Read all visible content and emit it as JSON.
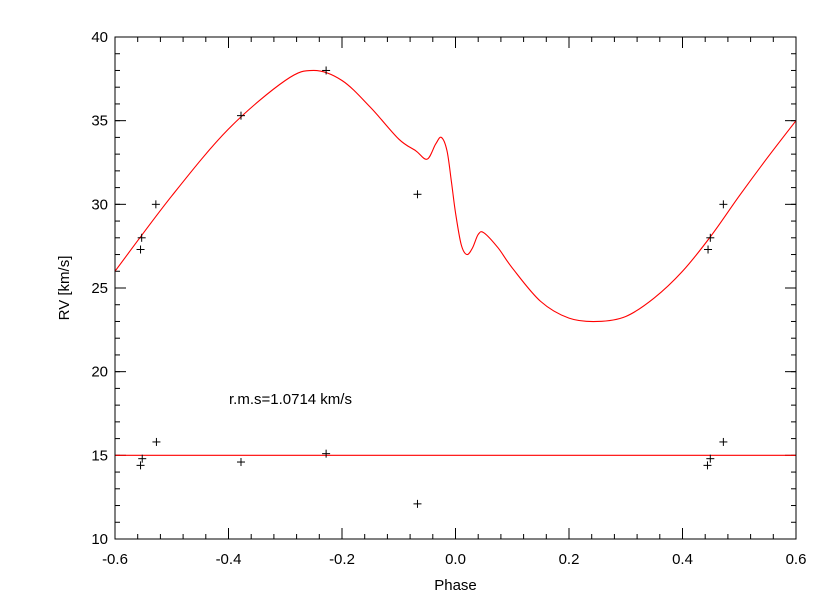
{
  "chart_data": {
    "type": "scatter",
    "xlabel": "Phase",
    "ylabel": "RV [km/s]",
    "xlim": [
      -0.6,
      0.6
    ],
    "ylim": [
      10,
      40
    ],
    "xticks": [
      -0.6,
      -0.4,
      -0.2,
      0.0,
      0.2,
      0.4,
      0.6
    ],
    "xtick_labels": [
      "-0.6",
      "-0.4",
      "-0.2",
      "0.0",
      "0.2",
      "0.4",
      "0.6"
    ],
    "yticks": [
      10,
      15,
      20,
      25,
      30,
      35,
      40
    ],
    "ytick_labels": [
      "10",
      "15",
      "20",
      "25",
      "30",
      "35",
      "40"
    ],
    "x_minor_step": 0.04,
    "y_minor_step": 1,
    "annotation": "r.m.s=1.0714 km/s",
    "colors": {
      "model": "#ff0000",
      "points": "#000000",
      "axes": "#000000"
    },
    "series": [
      {
        "kind": "points",
        "x": [
          -0.555,
          -0.553,
          -0.528,
          -0.378,
          -0.228,
          -0.067,
          0.445,
          0.449,
          0.472
        ],
        "y": [
          27.3,
          28.0,
          30.0,
          35.3,
          38.0,
          30.6,
          27.3,
          28.0,
          30.0
        ]
      },
      {
        "kind": "points",
        "x": [
          -0.555,
          -0.552,
          -0.527,
          -0.378,
          -0.228,
          -0.067,
          0.444,
          0.449,
          0.472
        ],
        "y": [
          14.4,
          14.8,
          15.8,
          14.6,
          15.1,
          12.1,
          14.4,
          14.8,
          15.8
        ]
      },
      {
        "kind": "line",
        "x": [
          -0.6,
          -0.5,
          -0.4,
          -0.3,
          -0.25,
          -0.2,
          -0.15,
          -0.1,
          -0.07,
          -0.05,
          -0.035,
          -0.025,
          -0.015,
          -0.007,
          0.0,
          0.01,
          0.02,
          0.03,
          0.04,
          0.05,
          0.075,
          0.1,
          0.15,
          0.2,
          0.25,
          0.3,
          0.35,
          0.4,
          0.45,
          0.5,
          0.55,
          0.6
        ],
        "y": [
          26.0,
          30.5,
          34.5,
          37.4,
          38.0,
          37.4,
          35.8,
          33.9,
          33.2,
          32.7,
          33.6,
          34.0,
          33.2,
          31.3,
          29.5,
          27.6,
          27.0,
          27.4,
          28.2,
          28.3,
          27.4,
          26.2,
          24.2,
          23.2,
          23.0,
          23.3,
          24.4,
          26.0,
          28.1,
          30.5,
          32.8,
          35.0
        ]
      },
      {
        "kind": "line",
        "x": [
          -0.6,
          0.6
        ],
        "y": [
          15.0,
          15.0
        ]
      }
    ]
  }
}
